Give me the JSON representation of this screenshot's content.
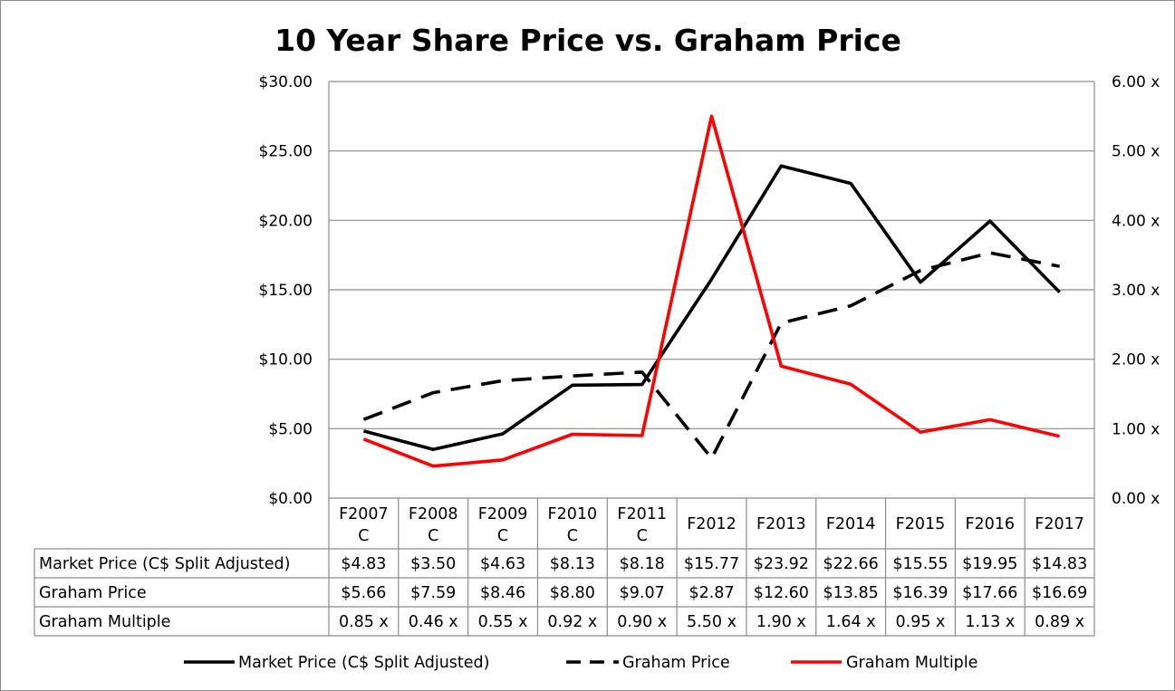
{
  "chart_data": {
    "type": "line",
    "title": "10 Year Share Price vs. Graham Price",
    "categories": [
      [
        "F2007",
        "C"
      ],
      [
        "F2008",
        "C"
      ],
      [
        "F2009",
        "C"
      ],
      [
        "F2010",
        "C"
      ],
      [
        "F2011",
        "C"
      ],
      [
        "F2012"
      ],
      [
        "F2013"
      ],
      [
        "F2014"
      ],
      [
        "F2015"
      ],
      [
        "F2016"
      ],
      [
        "F2017"
      ]
    ],
    "y_left": {
      "range": [
        0,
        30
      ],
      "ticks": [
        0,
        5,
        10,
        15,
        20,
        25,
        30
      ],
      "tick_labels": [
        "$0.00",
        "$5.00",
        "$10.00",
        "$15.00",
        "$20.00",
        "$25.00",
        "$30.00"
      ]
    },
    "y_right": {
      "range": [
        0,
        6
      ],
      "ticks": [
        0,
        1,
        2,
        3,
        4,
        5,
        6
      ],
      "tick_labels": [
        "0.00 x",
        "1.00 x",
        "2.00 x",
        "3.00 x",
        "4.00 x",
        "5.00 x",
        "6.00 x"
      ]
    },
    "gridlines": true,
    "legend_position": "bottom",
    "series": [
      {
        "name": "Market Price (C$ Split Adjusted)",
        "axis": "left",
        "color": "#000000",
        "dash": "solid",
        "values": [
          4.83,
          3.5,
          4.63,
          8.13,
          8.18,
          15.77,
          23.92,
          22.66,
          15.55,
          19.95,
          14.83
        ],
        "labels": [
          "$4.83",
          "$3.50",
          "$4.63",
          "$8.13",
          "$8.18",
          "$15.77",
          "$23.92",
          "$22.66",
          "$15.55",
          "$19.95",
          "$14.83"
        ]
      },
      {
        "name": "Graham Price",
        "axis": "left",
        "color": "#000000",
        "dash": "dashed",
        "values": [
          5.66,
          7.59,
          8.46,
          8.8,
          9.07,
          2.87,
          12.6,
          13.85,
          16.39,
          17.66,
          16.69
        ],
        "labels": [
          "$5.66",
          "$7.59",
          "$8.46",
          "$8.80",
          "$9.07",
          "$2.87",
          "$12.60",
          "$13.85",
          "$16.39",
          "$17.66",
          "$16.69"
        ]
      },
      {
        "name": "Graham Multiple",
        "axis": "right",
        "color": "#ff0000",
        "dash": "solid",
        "values": [
          0.85,
          0.46,
          0.55,
          0.92,
          0.9,
          5.5,
          1.9,
          1.64,
          0.95,
          1.13,
          0.89
        ],
        "labels": [
          "0.85 x",
          "0.46 x",
          "0.55 x",
          "0.92 x",
          "0.90 x",
          "5.50 x",
          "1.90 x",
          "1.64 x",
          "0.95 x",
          "1.13 x",
          "0.89 x"
        ]
      }
    ]
  }
}
